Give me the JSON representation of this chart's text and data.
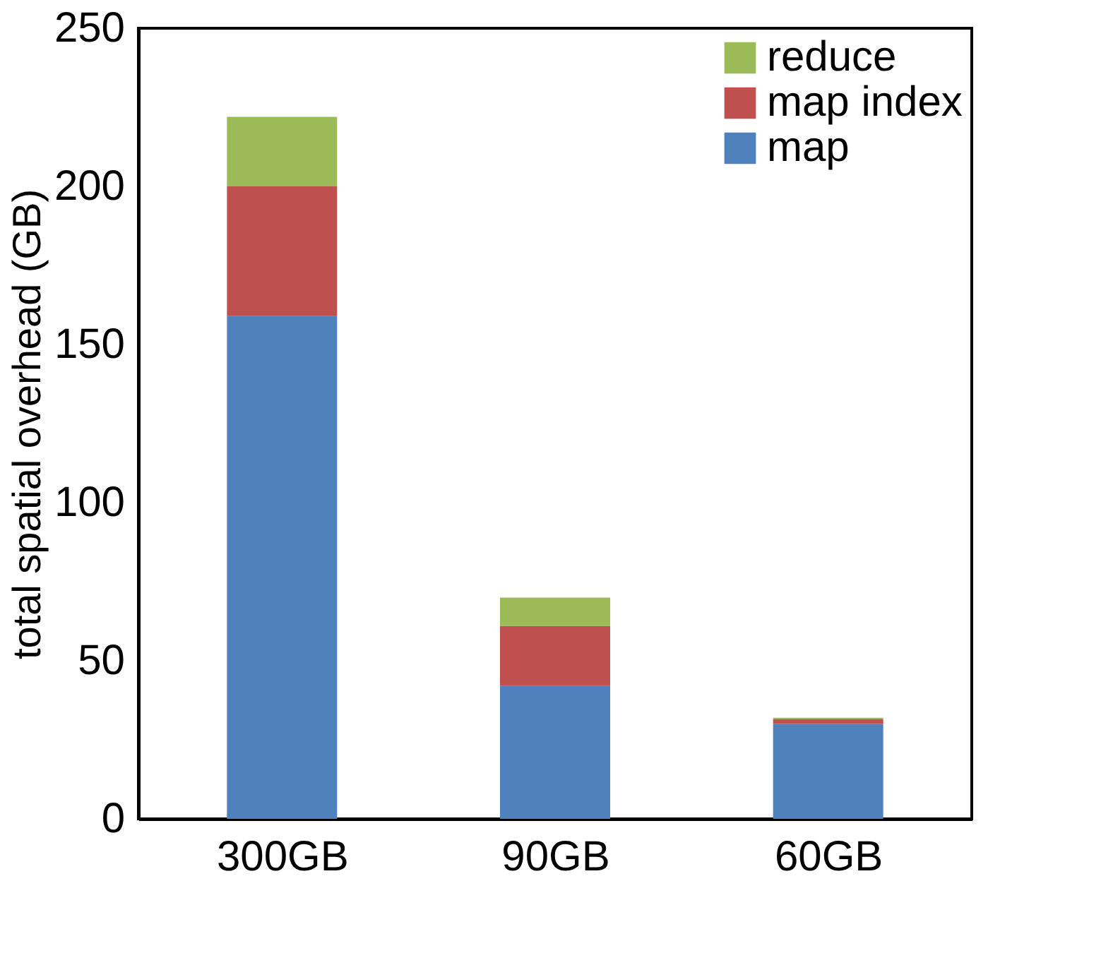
{
  "chart_data": {
    "type": "bar",
    "stacked": true,
    "ylabel": "total spatial overhead (GB)",
    "categories": [
      "300GB",
      "90GB",
      "60GB"
    ],
    "series": [
      {
        "name": "map",
        "color": "#4f81bd",
        "values": [
          159,
          42,
          30
        ]
      },
      {
        "name": "map index",
        "color": "#c0504d",
        "values": [
          41,
          19,
          1.5
        ]
      },
      {
        "name": "reduce",
        "color": "#9bbb59",
        "values": [
          22,
          9,
          0.5
        ]
      }
    ],
    "ylim": [
      0,
      250
    ],
    "yticks": [
      0,
      50,
      100,
      150,
      200,
      250
    ],
    "grid": false,
    "legend": "top right"
  }
}
